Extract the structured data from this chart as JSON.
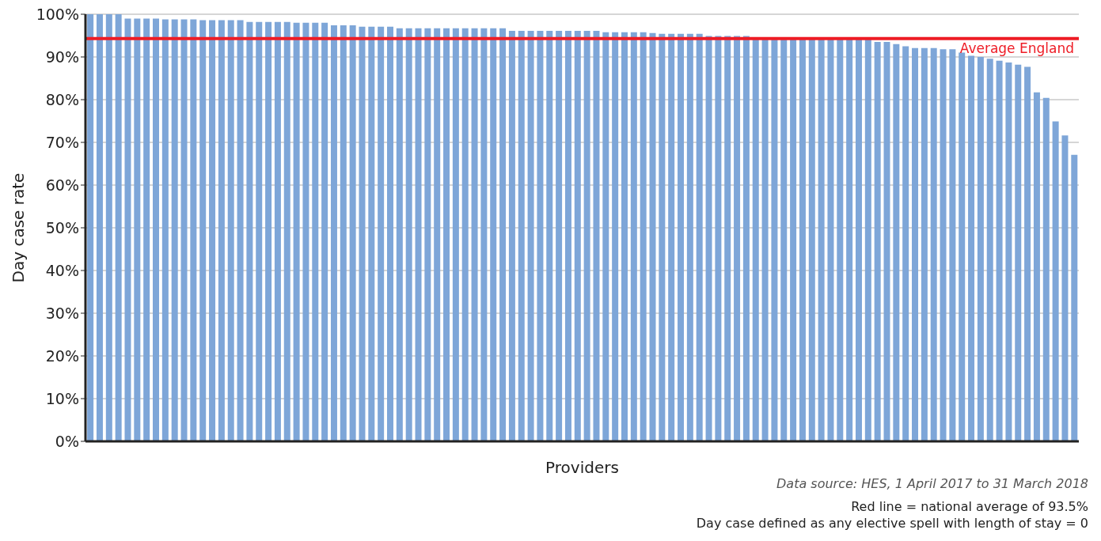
{
  "chart_data": {
    "type": "bar",
    "categories": [
      null,
      null,
      null,
      null,
      null,
      null,
      null,
      null,
      null,
      null,
      null,
      null,
      null,
      null,
      null,
      null,
      null,
      null,
      null,
      null,
      null,
      null,
      null,
      null,
      null,
      null,
      null,
      null,
      null,
      null,
      null,
      null,
      null,
      null,
      null,
      null,
      null,
      null,
      null,
      null,
      null,
      null,
      null,
      null,
      null,
      null,
      null,
      null,
      null,
      null,
      null,
      null,
      null,
      null,
      null,
      null,
      null,
      null,
      null,
      null,
      null,
      null,
      null,
      null,
      null,
      null,
      null,
      null,
      null,
      null,
      null,
      null,
      null,
      null,
      null,
      null,
      null,
      null,
      null,
      null,
      null,
      null,
      null,
      null,
      null,
      null,
      null,
      null,
      null,
      null,
      null,
      null,
      null,
      null,
      null,
      null,
      null,
      null,
      null,
      null,
      null,
      null,
      null,
      null,
      null,
      null
    ],
    "values": [
      100,
      100,
      100,
      100,
      99.0,
      99.0,
      99.0,
      99.0,
      98.8,
      98.8,
      98.8,
      98.8,
      98.6,
      98.6,
      98.6,
      98.6,
      98.6,
      98.2,
      98.2,
      98.2,
      98.2,
      98.2,
      98.0,
      98.0,
      98.0,
      98.0,
      97.4,
      97.4,
      97.4,
      97.1,
      97.1,
      97.1,
      97.1,
      96.7,
      96.7,
      96.7,
      96.7,
      96.7,
      96.7,
      96.7,
      96.7,
      96.7,
      96.7,
      96.7,
      96.7,
      96.1,
      96.1,
      96.1,
      96.1,
      96.1,
      96.1,
      96.1,
      96.1,
      96.1,
      96.1,
      95.8,
      95.8,
      95.8,
      95.8,
      95.8,
      95.6,
      95.4,
      95.4,
      95.4,
      95.4,
      95.4,
      94.9,
      94.9,
      94.9,
      94.9,
      94.9,
      94.2,
      94.2,
      94.2,
      94.2,
      94.2,
      94.2,
      94.2,
      94.2,
      94.2,
      94.2,
      94.2,
      94.2,
      94.2,
      93.5,
      93.5,
      93.0,
      92.5,
      92.1,
      92.1,
      92.1,
      91.8,
      91.8,
      91.0,
      90.3,
      90.0,
      89.6,
      89.1,
      88.7,
      88.2,
      87.7,
      81.7,
      80.4,
      74.9,
      71.6,
      67.1
    ],
    "color": "#7ea6d8",
    "xlabel": "Providers",
    "ylabel": "Day case rate",
    "ylim": [
      0,
      100
    ],
    "yticks": [
      {
        "value": 0,
        "label": "0%"
      },
      {
        "value": 10,
        "label": "10%"
      },
      {
        "value": 20,
        "label": "20%"
      },
      {
        "value": 30,
        "label": "30%"
      },
      {
        "value": 40,
        "label": "40%"
      },
      {
        "value": 50,
        "label": "50%"
      },
      {
        "value": 60,
        "label": "60%"
      },
      {
        "value": 70,
        "label": "70%"
      },
      {
        "value": 80,
        "label": "80%"
      },
      {
        "value": 90,
        "label": "90%"
      },
      {
        "value": 100,
        "label": "100%"
      }
    ],
    "grid": "y",
    "ref_lines": [
      {
        "axis": "y",
        "value": 94.3,
        "label": "Average England",
        "color": "#ee1c25"
      }
    ],
    "annotations": [
      "Data source: HES, 1 April 2017 to 31 March 2018",
      "Red line = national average of 93.5%",
      "Day case defined as any elective spell with length of stay = 0"
    ]
  }
}
